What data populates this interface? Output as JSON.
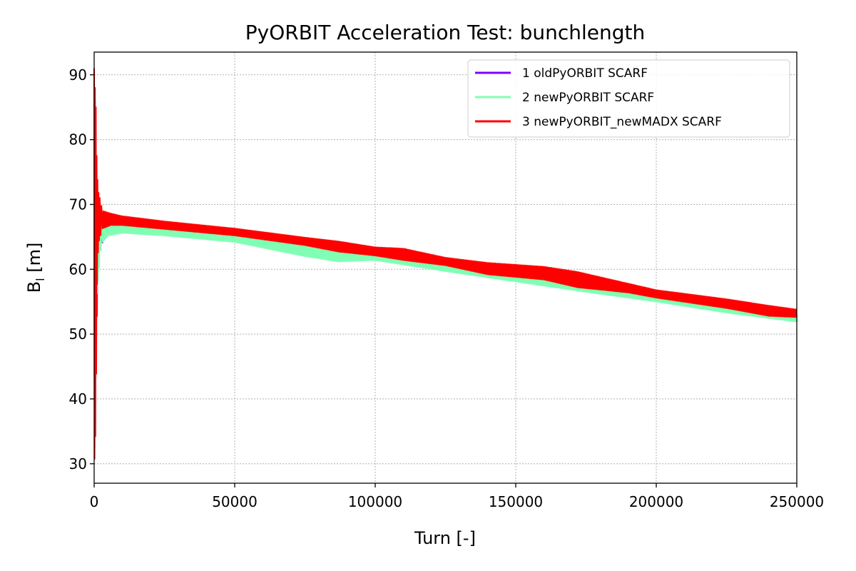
{
  "chart_data": {
    "type": "line",
    "title": "PyORBIT Acceleration Test: bunchlength",
    "xlabel": "Turn [-]",
    "ylabel_main": "B",
    "ylabel_sub": "l",
    "ylabel_unit": " [m]",
    "xlim": [
      0,
      250000
    ],
    "ylim": [
      27,
      93.5
    ],
    "xticks": [
      0,
      50000,
      100000,
      150000,
      200000,
      250000
    ],
    "yticks": [
      30,
      40,
      50,
      60,
      70,
      80,
      90
    ],
    "grid": true,
    "legend_position": "top-right",
    "series": [
      {
        "name": "1 oldPyORBIT SCARF",
        "color": "#8000ff",
        "line_width": 2,
        "envelope": [
          [
            0,
            91.0,
            29.0
          ],
          [
            1500,
            66.0,
            63.0
          ],
          [
            5000,
            66.6,
            65.6
          ],
          [
            10000,
            66.7,
            65.9
          ],
          [
            25000,
            66.3,
            65.5
          ],
          [
            50000,
            65.3,
            64.5
          ],
          [
            75000,
            64.0,
            63.0
          ],
          [
            100000,
            62.6,
            61.8
          ],
          [
            125000,
            61.0,
            60.0
          ],
          [
            150000,
            59.4,
            58.4
          ],
          [
            175000,
            57.8,
            56.8
          ],
          [
            200000,
            56.2,
            55.2
          ],
          [
            225000,
            54.6,
            53.6
          ],
          [
            250000,
            53.0,
            52.0
          ]
        ]
      },
      {
        "name": "2 newPyORBIT SCARF",
        "color": "#80ffb4",
        "line_width": 2,
        "envelope": [
          [
            0,
            90.5,
            29.5
          ],
          [
            1000,
            72.0,
            56.0
          ],
          [
            2500,
            67.8,
            64.0
          ],
          [
            5000,
            67.5,
            65.2
          ],
          [
            10000,
            67.0,
            65.6
          ],
          [
            25000,
            66.6,
            65.2
          ],
          [
            50000,
            65.6,
            64.2
          ],
          [
            75000,
            64.2,
            62.0
          ],
          [
            87000,
            63.6,
            61.2
          ],
          [
            100000,
            62.8,
            61.4
          ],
          [
            125000,
            61.3,
            59.7
          ],
          [
            150000,
            59.7,
            58.1
          ],
          [
            175000,
            58.2,
            56.5
          ],
          [
            200000,
            56.5,
            55.0
          ],
          [
            225000,
            54.9,
            53.3
          ],
          [
            250000,
            53.4,
            51.9
          ]
        ]
      },
      {
        "name": "3 newPyORBIT_newMADX SCARF",
        "color": "#ff0000",
        "line_width": 2,
        "envelope": [
          [
            0,
            91.0,
            29.0
          ],
          [
            600,
            85.0,
            36.0
          ],
          [
            1000,
            75.0,
            57.0
          ],
          [
            1500,
            72.0,
            64.0
          ],
          [
            3000,
            69.0,
            66.3
          ],
          [
            6000,
            68.6,
            66.8
          ],
          [
            10000,
            68.2,
            66.8
          ],
          [
            25000,
            67.4,
            66.2
          ],
          [
            50000,
            66.3,
            65.2
          ],
          [
            75000,
            64.9,
            63.7
          ],
          [
            87000,
            64.3,
            62.7
          ],
          [
            100000,
            63.4,
            62.1
          ],
          [
            110000,
            63.2,
            61.4
          ],
          [
            125000,
            61.8,
            60.6
          ],
          [
            140000,
            61.0,
            59.2
          ],
          [
            160000,
            60.4,
            58.4
          ],
          [
            172000,
            59.6,
            57.2
          ],
          [
            190000,
            57.8,
            56.4
          ],
          [
            200000,
            56.8,
            55.6
          ],
          [
            225000,
            55.4,
            54.0
          ],
          [
            240000,
            54.4,
            52.8
          ],
          [
            250000,
            53.8,
            52.6
          ]
        ]
      }
    ]
  }
}
